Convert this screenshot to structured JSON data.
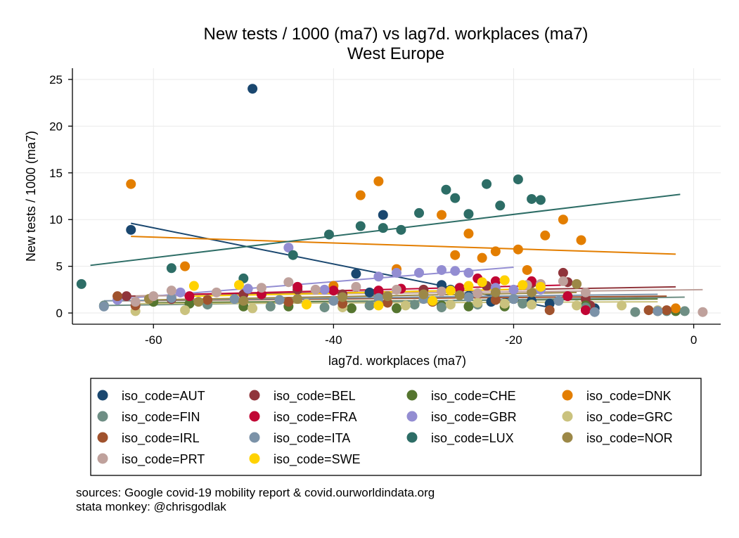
{
  "chart_data": {
    "type": "scatter",
    "title": "New tests / 1000 (ma7) vs lag7d. workplaces (ma7)",
    "subtitle": "West Europe",
    "xlabel": "lag7d. workplaces (ma7)",
    "ylabel": "New tests / 1000 (ma7)",
    "xlim": [
      -69,
      3
    ],
    "ylim": [
      -1.2,
      26.2
    ],
    "xticks": [
      -60,
      -40,
      -20,
      0
    ],
    "yticks": [
      0,
      5,
      10,
      15,
      20,
      25
    ],
    "grid": true,
    "legend_position": "bottom",
    "series": [
      {
        "name": "iso_code=AUT",
        "color": "#1a476f",
        "points": [
          [
            -49,
            24
          ],
          [
            -62.5,
            8.9
          ],
          [
            -34.5,
            10.5
          ],
          [
            -37.5,
            4.2
          ],
          [
            -27,
            2.5
          ],
          [
            -25,
            1.8
          ],
          [
            -22.5,
            1.2
          ],
          [
            -20,
            1.5
          ],
          [
            -18,
            1.3
          ],
          [
            -16,
            1.0
          ],
          [
            -11,
            0.5
          ],
          [
            -28,
            3.0
          ],
          [
            -36,
            2.2
          ]
        ],
        "fit": [
          [
            -62.5,
            9.6
          ],
          [
            -16,
            0.6
          ]
        ]
      },
      {
        "name": "iso_code=BEL",
        "color": "#90353b",
        "points": [
          [
            -63,
            1.8
          ],
          [
            -58,
            1.5
          ],
          [
            -50,
            2.0
          ],
          [
            -44,
            2.5
          ],
          [
            -39,
            2.0
          ],
          [
            -35,
            2.2
          ],
          [
            -30,
            2.5
          ],
          [
            -26,
            2.6
          ],
          [
            -23,
            2.9
          ],
          [
            -18,
            3.2
          ],
          [
            -14.5,
            4.3
          ],
          [
            -14,
            3.3
          ],
          [
            -12,
            1.5
          ],
          [
            -11.5,
            0.8
          ]
        ],
        "fit": [
          [
            -63,
            1.8
          ],
          [
            -2,
            2.8
          ]
        ]
      },
      {
        "name": "iso_code=CHE",
        "color": "#55752f",
        "points": [
          [
            -60,
            1.2
          ],
          [
            -56,
            1.0
          ],
          [
            -50,
            0.7
          ],
          [
            -45,
            0.7
          ],
          [
            -38,
            0.5
          ],
          [
            -33,
            0.5
          ],
          [
            -28,
            0.8
          ],
          [
            -25,
            0.7
          ],
          [
            -21,
            0.7
          ],
          [
            -18,
            0.9
          ],
          [
            -12,
            0.8
          ],
          [
            -4,
            0.2
          ],
          [
            -2,
            0.2
          ]
        ],
        "fit": [
          [
            -60,
            1.1
          ],
          [
            -4,
            1.5
          ]
        ]
      },
      {
        "name": "iso_code=DNK",
        "color": "#e37e00",
        "points": [
          [
            -62.5,
            13.8
          ],
          [
            -56.5,
            5.0
          ],
          [
            -37,
            12.6
          ],
          [
            -35,
            14.1
          ],
          [
            -28,
            10.5
          ],
          [
            -26.5,
            6.2
          ],
          [
            -25,
            8.5
          ],
          [
            -23.5,
            5.9
          ],
          [
            -22,
            6.6
          ],
          [
            -19.5,
            6.8
          ],
          [
            -18.5,
            4.6
          ],
          [
            -16.5,
            8.3
          ],
          [
            -14.5,
            10.0
          ],
          [
            -12.5,
            7.8
          ],
          [
            -33,
            4.7
          ],
          [
            -40,
            2.9
          ],
          [
            -2,
            0.5
          ]
        ],
        "fit": [
          [
            -62.5,
            8.2
          ],
          [
            -2,
            6.3
          ]
        ]
      },
      {
        "name": "iso_code=FIN",
        "color": "#6e8e84",
        "points": [
          [
            -65.5,
            0.8
          ],
          [
            -54,
            0.9
          ],
          [
            -47,
            0.7
          ],
          [
            -41,
            0.6
          ],
          [
            -36,
            0.8
          ],
          [
            -31,
            0.9
          ],
          [
            -28,
            0.6
          ],
          [
            -24,
            0.9
          ],
          [
            -19,
            1.0
          ],
          [
            -12,
            0.6
          ],
          [
            -6.5,
            0.1
          ],
          [
            -3,
            0.2
          ],
          [
            -1,
            0.2
          ]
        ],
        "fit": [
          [
            -65.5,
            0.8
          ],
          [
            -1,
            1.7
          ]
        ]
      },
      {
        "name": "iso_code=FRA",
        "color": "#c10534",
        "points": [
          [
            -56,
            1.8
          ],
          [
            -48,
            2.0
          ],
          [
            -44,
            2.8
          ],
          [
            -40,
            2.4
          ],
          [
            -35,
            2.4
          ],
          [
            -32.5,
            2.6
          ],
          [
            -26,
            2.7
          ],
          [
            -24,
            3.7
          ],
          [
            -22,
            3.4
          ],
          [
            -18,
            3.4
          ],
          [
            -14,
            1.8
          ],
          [
            -12,
            0.3
          ]
        ],
        "fit": [
          [
            -56,
            2.0
          ],
          [
            -14,
            3.0
          ]
        ]
      },
      {
        "name": "iso_code=GBR",
        "color": "#938dd2",
        "points": [
          [
            -64,
            1.4
          ],
          [
            -57,
            2.2
          ],
          [
            -49.5,
            2.6
          ],
          [
            -45,
            7.0
          ],
          [
            -41,
            2.5
          ],
          [
            -35,
            3.9
          ],
          [
            -33,
            4.3
          ],
          [
            -30.5,
            4.3
          ],
          [
            -28,
            4.6
          ],
          [
            -26.5,
            4.5
          ],
          [
            -25,
            4.3
          ],
          [
            -22,
            2.7
          ],
          [
            -20,
            2.5
          ],
          [
            -17,
            2.5
          ]
        ],
        "fit": [
          [
            -64,
            1.5
          ],
          [
            -20,
            4.9
          ]
        ]
      },
      {
        "name": "iso_code=GRC",
        "color": "#cac27e",
        "points": [
          [
            -62,
            0.2
          ],
          [
            -56.5,
            0.3
          ],
          [
            -49,
            0.5
          ],
          [
            -43,
            1.0
          ],
          [
            -39,
            0.6
          ],
          [
            -32,
            0.8
          ],
          [
            -27,
            0.9
          ],
          [
            -24,
            1.1
          ],
          [
            -21,
            1.0
          ],
          [
            -18,
            0.9
          ],
          [
            -13,
            0.8
          ],
          [
            -8,
            0.8
          ],
          [
            -4,
            0.3
          ]
        ],
        "fit": [
          [
            -62,
            1.0
          ],
          [
            -4,
            1.2
          ]
        ]
      },
      {
        "name": "iso_code=IRL",
        "color": "#a0522d",
        "points": [
          [
            -64,
            1.8
          ],
          [
            -62,
            0.8
          ],
          [
            -54,
            1.4
          ],
          [
            -45,
            1.2
          ],
          [
            -39,
            1.0
          ],
          [
            -34,
            1.1
          ],
          [
            -29,
            1.2
          ],
          [
            -22,
            1.4
          ],
          [
            -16,
            0.3
          ],
          [
            -5,
            0.3
          ],
          [
            -3,
            0.3
          ]
        ],
        "fit": [
          [
            -64,
            1.3
          ],
          [
            -3,
            1.8
          ]
        ]
      },
      {
        "name": "iso_code=ITA",
        "color": "#7b92a8",
        "points": [
          [
            -65.5,
            0.7
          ],
          [
            -58,
            1.6
          ],
          [
            -51,
            1.5
          ],
          [
            -46,
            1.4
          ],
          [
            -40,
            1.3
          ],
          [
            -35,
            1.6
          ],
          [
            -30,
            1.5
          ],
          [
            -25,
            1.7
          ],
          [
            -20,
            1.5
          ],
          [
            -15,
            1.3
          ],
          [
            -11,
            0.1
          ],
          [
            -4,
            0.2
          ]
        ],
        "fit": [
          [
            -65.5,
            1.3
          ],
          [
            -4,
            2.0
          ]
        ]
      },
      {
        "name": "iso_code=LUX",
        "color": "#2d6d66",
        "points": [
          [
            -68,
            3.1
          ],
          [
            -58,
            4.8
          ],
          [
            -50,
            3.7
          ],
          [
            -44.5,
            6.2
          ],
          [
            -40.5,
            8.4
          ],
          [
            -37,
            9.3
          ],
          [
            -34.5,
            9.1
          ],
          [
            -32.5,
            8.9
          ],
          [
            -30.5,
            10.7
          ],
          [
            -27.5,
            13.2
          ],
          [
            -26.5,
            12.3
          ],
          [
            -25,
            10.6
          ],
          [
            -23,
            13.8
          ],
          [
            -21.5,
            11.5
          ],
          [
            -19.5,
            14.3
          ],
          [
            -18,
            12.2
          ],
          [
            -17,
            12.1
          ]
        ],
        "fit": [
          [
            -67,
            5.1
          ],
          [
            -1.5,
            12.7
          ]
        ]
      },
      {
        "name": "iso_code=NOR",
        "color": "#9c8847",
        "points": [
          [
            -60.5,
            1.5
          ],
          [
            -55,
            1.2
          ],
          [
            -50,
            1.3
          ],
          [
            -44,
            1.5
          ],
          [
            -39,
            1.7
          ],
          [
            -34,
            1.8
          ],
          [
            -30,
            2.0
          ],
          [
            -26,
            1.9
          ],
          [
            -22,
            2.2
          ],
          [
            -18,
            2.2
          ],
          [
            -13,
            3.1
          ]
        ],
        "fit": [
          [
            -60.5,
            1.4
          ],
          [
            -13,
            2.2
          ]
        ]
      },
      {
        "name": "iso_code=PRT",
        "color": "#bfa19c",
        "points": [
          [
            -62,
            1.2
          ],
          [
            -60,
            1.8
          ],
          [
            -58,
            2.4
          ],
          [
            -53,
            2.2
          ],
          [
            -48,
            2.7
          ],
          [
            -45,
            3.3
          ],
          [
            -42,
            2.5
          ],
          [
            -37.5,
            2.8
          ],
          [
            -33,
            2.5
          ],
          [
            -28,
            2.3
          ],
          [
            -24,
            2.1
          ],
          [
            -21,
            3.5
          ],
          [
            -18.5,
            3.0
          ],
          [
            -17,
            3.1
          ],
          [
            -14.5,
            3.4
          ],
          [
            -12,
            2.2
          ],
          [
            1,
            0.1
          ]
        ],
        "fit": [
          [
            -62,
            1.8
          ],
          [
            1,
            2.5
          ]
        ]
      },
      {
        "name": "iso_code=SWE",
        "color": "#ffd200",
        "points": [
          [
            -55.5,
            2.9
          ],
          [
            -50.5,
            3.0
          ],
          [
            -43,
            0.9
          ],
          [
            -35,
            0.8
          ],
          [
            -29,
            1.3
          ],
          [
            -27,
            2.4
          ],
          [
            -25,
            2.9
          ],
          [
            -23.5,
            3.3
          ],
          [
            -21,
            3.5
          ],
          [
            -19,
            3.0
          ],
          [
            -17,
            2.8
          ]
        ],
        "fit": [
          [
            -55.5,
            1.8
          ],
          [
            -17,
            2.6
          ]
        ]
      }
    ],
    "notes": [
      "sources: Google covid-19 mobility report & covid.ourworldindata.org",
      "stata monkey: @chrisgodlak"
    ]
  }
}
